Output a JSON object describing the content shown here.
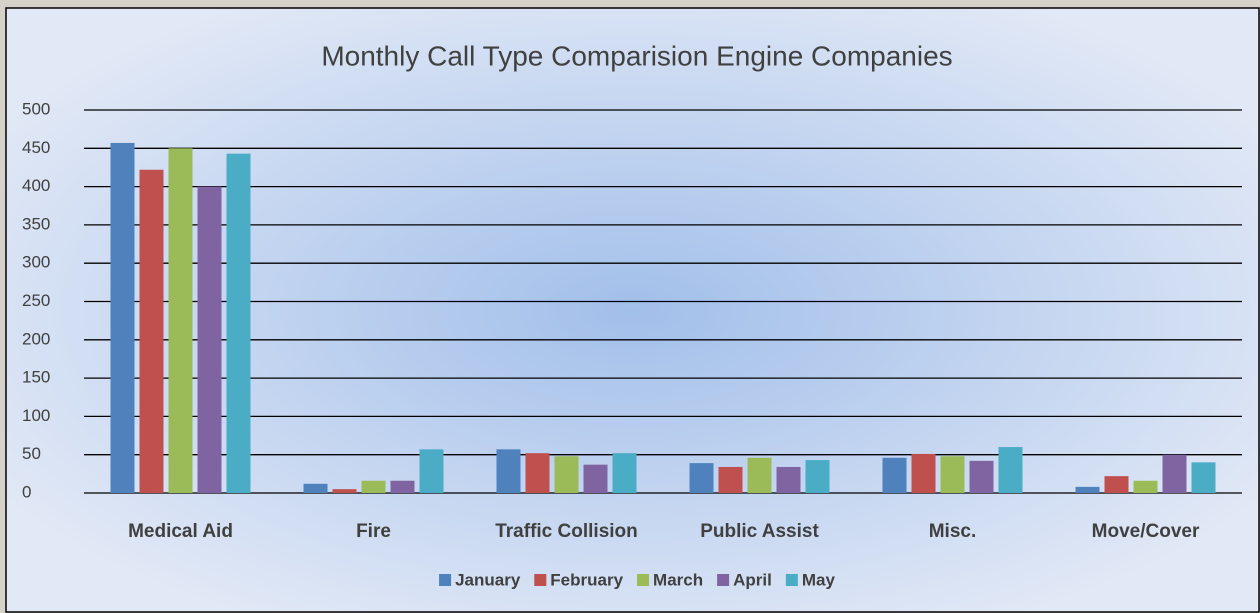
{
  "chart_data": {
    "type": "bar",
    "title": "Monthly Call Type Comparision Engine Companies",
    "categories": [
      "Medical Aid",
      "Fire",
      "Traffic Collision",
      "Public Assist",
      "Misc.",
      "Move/Cover"
    ],
    "series": [
      {
        "name": "January",
        "color": "#4f81bd",
        "values": [
          457,
          12,
          57,
          39,
          46,
          8
        ]
      },
      {
        "name": "February",
        "color": "#c0504d",
        "values": [
          422,
          5,
          52,
          34,
          51,
          22
        ]
      },
      {
        "name": "March",
        "color": "#9bbb59",
        "values": [
          450,
          16,
          48,
          46,
          48,
          16
        ]
      },
      {
        "name": "April",
        "color": "#8064a2",
        "values": [
          400,
          16,
          37,
          34,
          42,
          50
        ]
      },
      {
        "name": "May",
        "color": "#4bacc6",
        "values": [
          443,
          57,
          52,
          43,
          60,
          40
        ]
      }
    ],
    "ylim": [
      0,
      500
    ],
    "yticks": [
      0,
      50,
      100,
      150,
      200,
      250,
      300,
      350,
      400,
      450,
      500
    ],
    "grid": true,
    "legend": "bottom"
  }
}
